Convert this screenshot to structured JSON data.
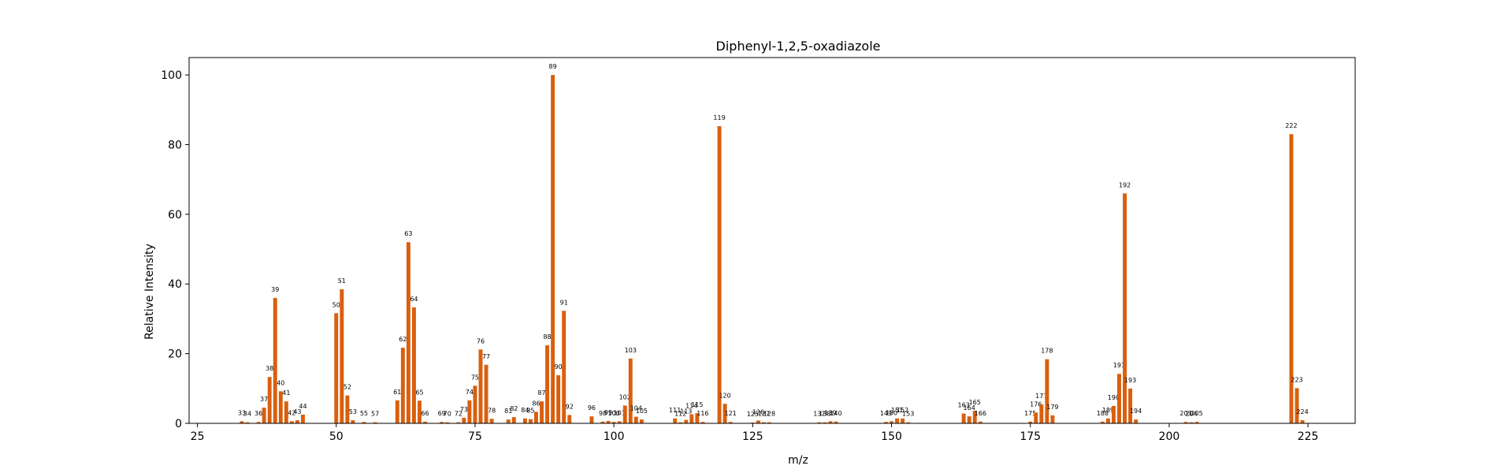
{
  "chart_data": {
    "type": "bar",
    "title": "Diphenyl-1,2,5-oxadiazole",
    "xlabel": "m/z",
    "ylabel": "Relative Intensity",
    "xlim": [
      23.5,
      233.5
    ],
    "ylim": [
      0,
      105
    ],
    "xticks": [
      25,
      50,
      75,
      100,
      125,
      150,
      175,
      200,
      225
    ],
    "yticks": [
      0,
      20,
      40,
      60,
      80,
      100
    ],
    "grid": false,
    "bar_color": "#d95f0e",
    "points": [
      {
        "mz": 33,
        "intensity": 0.6
      },
      {
        "mz": 34,
        "intensity": 0.3
      },
      {
        "mz": 36,
        "intensity": 0.4
      },
      {
        "mz": 37,
        "intensity": 4.5
      },
      {
        "mz": 38,
        "intensity": 13.3
      },
      {
        "mz": 39,
        "intensity": 36.0
      },
      {
        "mz": 40,
        "intensity": 9.2
      },
      {
        "mz": 41,
        "intensity": 6.3
      },
      {
        "mz": 42,
        "intensity": 0.6
      },
      {
        "mz": 43,
        "intensity": 0.9
      },
      {
        "mz": 44,
        "intensity": 2.5
      },
      {
        "mz": 50,
        "intensity": 31.6
      },
      {
        "mz": 51,
        "intensity": 38.5
      },
      {
        "mz": 52,
        "intensity": 8.0
      },
      {
        "mz": 53,
        "intensity": 0.9
      },
      {
        "mz": 55,
        "intensity": 0.4
      },
      {
        "mz": 57,
        "intensity": 0.3
      },
      {
        "mz": 61,
        "intensity": 6.6
      },
      {
        "mz": 62,
        "intensity": 21.7
      },
      {
        "mz": 63,
        "intensity": 52.0
      },
      {
        "mz": 64,
        "intensity": 33.3
      },
      {
        "mz": 65,
        "intensity": 6.5
      },
      {
        "mz": 66,
        "intensity": 0.5
      },
      {
        "mz": 69,
        "intensity": 0.4
      },
      {
        "mz": 70,
        "intensity": 0.3
      },
      {
        "mz": 72,
        "intensity": 0.3
      },
      {
        "mz": 73,
        "intensity": 1.6
      },
      {
        "mz": 74,
        "intensity": 6.6
      },
      {
        "mz": 75,
        "intensity": 10.8
      },
      {
        "mz": 76,
        "intensity": 21.2
      },
      {
        "mz": 77,
        "intensity": 16.8
      },
      {
        "mz": 78,
        "intensity": 1.3
      },
      {
        "mz": 81,
        "intensity": 1.1
      },
      {
        "mz": 82,
        "intensity": 1.8
      },
      {
        "mz": 84,
        "intensity": 1.4
      },
      {
        "mz": 85,
        "intensity": 1.2
      },
      {
        "mz": 86,
        "intensity": 3.3
      },
      {
        "mz": 87,
        "intensity": 6.3
      },
      {
        "mz": 88,
        "intensity": 22.4
      },
      {
        "mz": 89,
        "intensity": 100.0
      },
      {
        "mz": 90,
        "intensity": 13.8
      },
      {
        "mz": 91,
        "intensity": 32.3
      },
      {
        "mz": 92,
        "intensity": 2.4
      },
      {
        "mz": 96,
        "intensity": 2.0
      },
      {
        "mz": 98,
        "intensity": 0.5
      },
      {
        "mz": 99,
        "intensity": 0.7
      },
      {
        "mz": 100,
        "intensity": 0.4
      },
      {
        "mz": 101,
        "intensity": 0.6
      },
      {
        "mz": 102,
        "intensity": 5.1
      },
      {
        "mz": 103,
        "intensity": 18.6
      },
      {
        "mz": 104,
        "intensity": 1.9
      },
      {
        "mz": 105,
        "intensity": 1.1
      },
      {
        "mz": 111,
        "intensity": 1.4
      },
      {
        "mz": 112,
        "intensity": 0.3
      },
      {
        "mz": 113,
        "intensity": 1.0
      },
      {
        "mz": 114,
        "intensity": 2.6
      },
      {
        "mz": 115,
        "intensity": 2.9
      },
      {
        "mz": 116,
        "intensity": 0.4
      },
      {
        "mz": 119,
        "intensity": 85.3
      },
      {
        "mz": 120,
        "intensity": 5.6
      },
      {
        "mz": 121,
        "intensity": 0.4
      },
      {
        "mz": 125,
        "intensity": 0.2
      },
      {
        "mz": 126,
        "intensity": 0.8
      },
      {
        "mz": 127,
        "intensity": 0.3
      },
      {
        "mz": 128,
        "intensity": 0.3
      },
      {
        "mz": 137,
        "intensity": 0.3
      },
      {
        "mz": 138,
        "intensity": 0.3
      },
      {
        "mz": 139,
        "intensity": 0.6
      },
      {
        "mz": 140,
        "intensity": 0.5
      },
      {
        "mz": 149,
        "intensity": 0.4
      },
      {
        "mz": 150,
        "intensity": 0.6
      },
      {
        "mz": 151,
        "intensity": 1.4
      },
      {
        "mz": 152,
        "intensity": 1.4
      },
      {
        "mz": 153,
        "intensity": 0.3
      },
      {
        "mz": 163,
        "intensity": 2.8
      },
      {
        "mz": 164,
        "intensity": 2.0
      },
      {
        "mz": 165,
        "intensity": 3.6
      },
      {
        "mz": 166,
        "intensity": 0.5
      },
      {
        "mz": 175,
        "intensity": 0.5
      },
      {
        "mz": 176,
        "intensity": 3.1
      },
      {
        "mz": 177,
        "intensity": 5.4
      },
      {
        "mz": 178,
        "intensity": 18.4
      },
      {
        "mz": 179,
        "intensity": 2.3
      },
      {
        "mz": 188,
        "intensity": 0.5
      },
      {
        "mz": 189,
        "intensity": 1.4
      },
      {
        "mz": 190,
        "intensity": 5.0
      },
      {
        "mz": 191,
        "intensity": 14.2
      },
      {
        "mz": 192,
        "intensity": 66.0
      },
      {
        "mz": 193,
        "intensity": 10.0
      },
      {
        "mz": 194,
        "intensity": 1.1
      },
      {
        "mz": 203,
        "intensity": 0.4
      },
      {
        "mz": 204,
        "intensity": 0.3
      },
      {
        "mz": 205,
        "intensity": 0.4
      },
      {
        "mz": 222,
        "intensity": 83.0
      },
      {
        "mz": 223,
        "intensity": 10.1
      },
      {
        "mz": 224,
        "intensity": 0.9
      }
    ]
  }
}
